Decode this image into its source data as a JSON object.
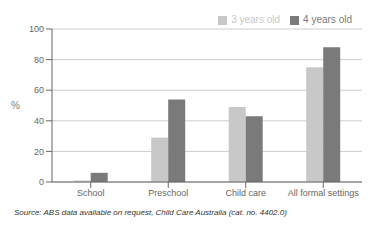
{
  "chart_data": {
    "type": "bar",
    "categories": [
      "School",
      "Preschool",
      "Child care",
      "All formal settings"
    ],
    "series": [
      {
        "name": "3 years old",
        "color": "#c8c8c8",
        "values": [
          1,
          29,
          49,
          75
        ]
      },
      {
        "name": "4 years old",
        "color": "#7a7a7a",
        "values": [
          6,
          54,
          43,
          88
        ]
      }
    ],
    "ylabel": "%",
    "ylim": [
      0,
      100
    ],
    "yticks": [
      0,
      20,
      40,
      60,
      80,
      100
    ],
    "grid": true,
    "legend": "upper right",
    "annotations": [
      "Source: ABS data available on request, Child Care Australia (cat.  no.  4402.0)"
    ]
  }
}
